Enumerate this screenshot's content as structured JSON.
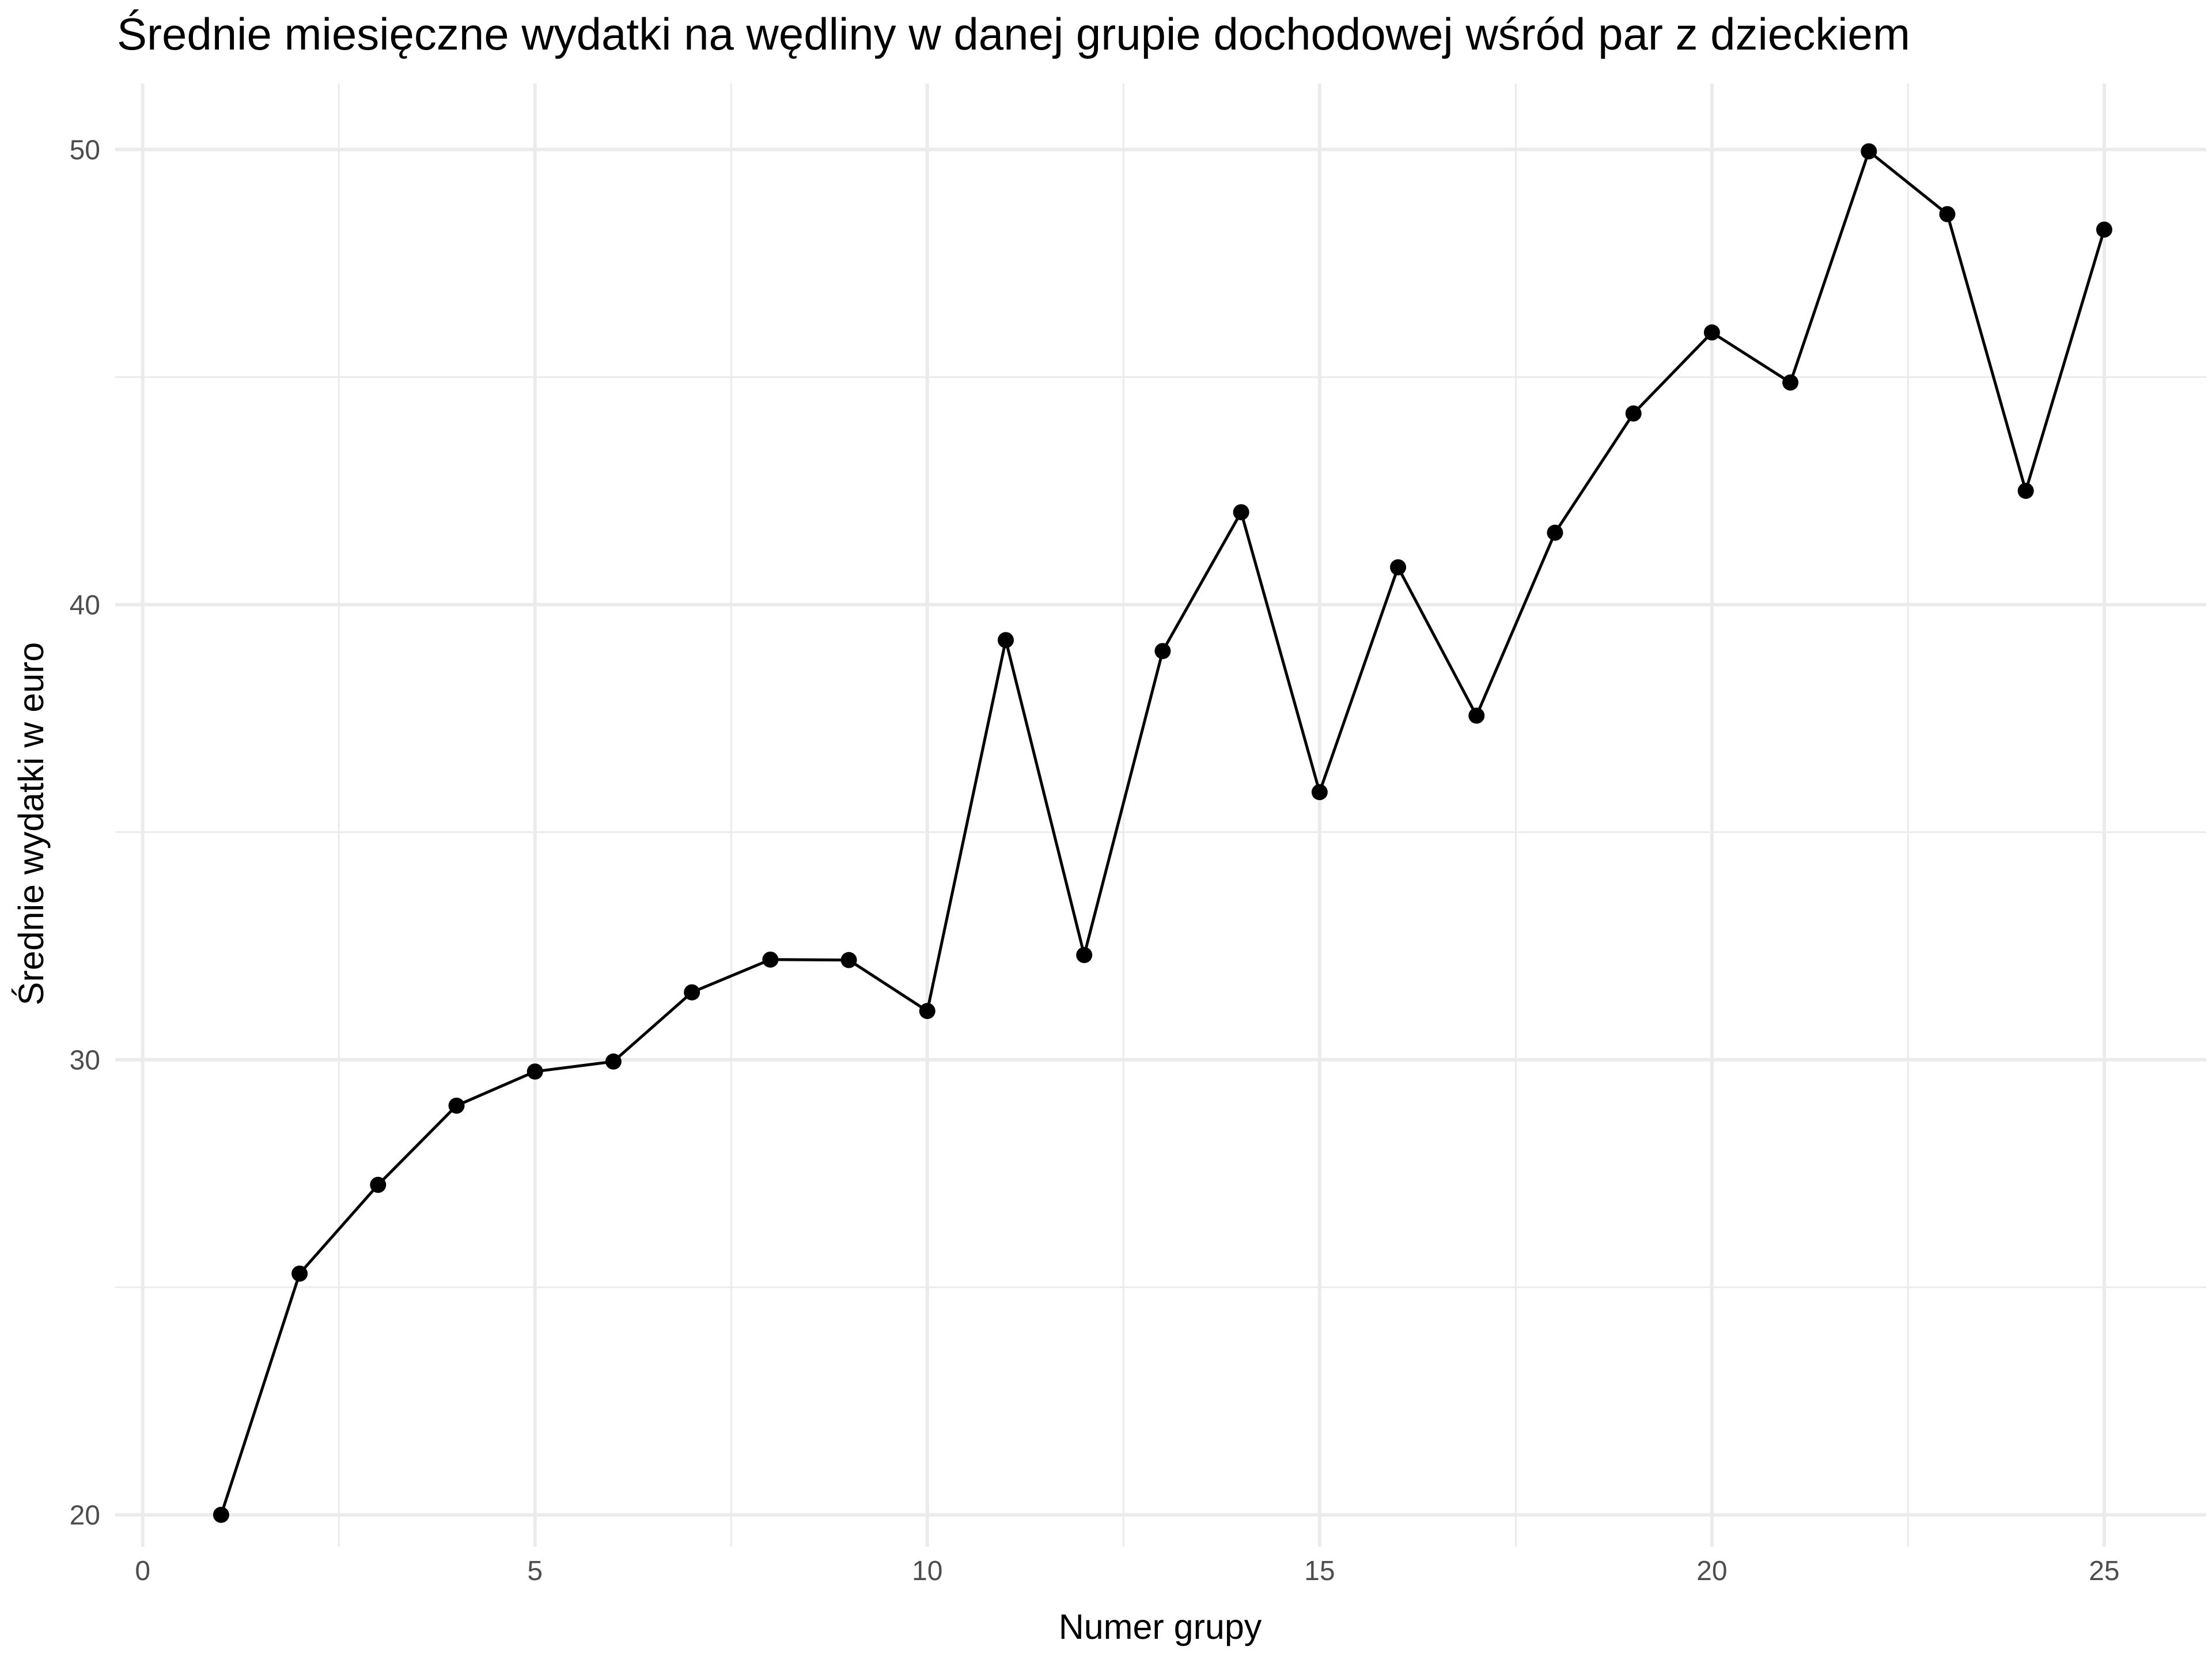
{
  "chart_data": {
    "type": "line",
    "title": "Średnie miesięczne wydatki na wędliny w danej grupie dochodowej wśród par z dzieckiem",
    "xlabel": "Numer grupy",
    "ylabel": "Średnie wydatki w euro",
    "x": [
      1,
      2,
      3,
      4,
      5,
      6,
      7,
      8,
      9,
      10,
      11,
      12,
      13,
      14,
      15,
      16,
      17,
      18,
      19,
      20,
      21,
      22,
      23,
      24,
      25
    ],
    "series": [
      {
        "values": [
          20.0,
          25.3,
          27.25,
          28.99,
          29.74,
          29.96,
          31.48,
          32.2,
          32.19,
          31.07,
          39.22,
          32.3,
          38.98,
          42.03,
          35.88,
          40.82,
          37.56,
          41.58,
          44.2,
          45.98,
          44.88,
          49.96,
          48.58,
          42.5,
          48.24
        ]
      }
    ],
    "xlim": [
      -0.35,
      26.3
    ],
    "ylim": [
      19.3,
      51.45
    ],
    "xticks": [
      0,
      5,
      10,
      15,
      20,
      25
    ],
    "yticks": [
      20,
      30,
      40,
      50
    ],
    "grid": true,
    "legend": "none",
    "colors": {
      "line": "#000000",
      "point": "#000000",
      "grid_major": "#ebebeb",
      "grid_minor": "#ebebeb",
      "tick_text": "#4d4d4d",
      "background": "#ffffff"
    }
  }
}
